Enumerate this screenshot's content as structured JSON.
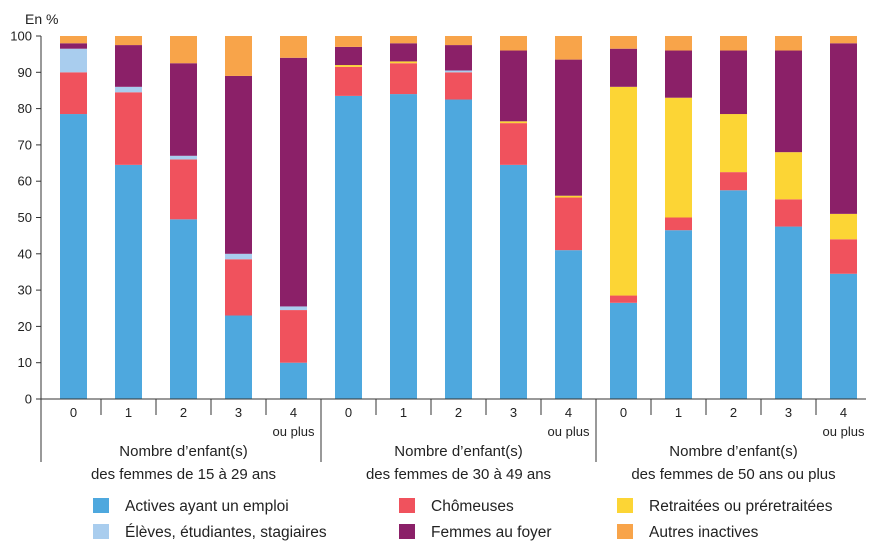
{
  "chart_data": {
    "type": "bar",
    "stacked": true,
    "ylabel": "En %",
    "ylim": [
      0,
      100
    ],
    "yticks": [
      0,
      10,
      20,
      30,
      40,
      50,
      60,
      70,
      80,
      90,
      100
    ],
    "grid": false,
    "legend_position": "bottom",
    "groups": [
      {
        "label_line1": "Nombre d’enfant(s)",
        "label_line2": "des femmes de 15 à 29 ans"
      },
      {
        "label_line1": "Nombre d’enfant(s)",
        "label_line2": "des femmes de 30 à 49 ans"
      },
      {
        "label_line1": "Nombre d’enfant(s)",
        "label_line2": "des femmes de 50 ans ou plus"
      }
    ],
    "categories": [
      {
        "label": "0",
        "sublabel": ""
      },
      {
        "label": "1",
        "sublabel": ""
      },
      {
        "label": "2",
        "sublabel": ""
      },
      {
        "label": "3",
        "sublabel": ""
      },
      {
        "label": "4",
        "sublabel": "ou plus"
      },
      {
        "label": "0",
        "sublabel": ""
      },
      {
        "label": "1",
        "sublabel": ""
      },
      {
        "label": "2",
        "sublabel": ""
      },
      {
        "label": "3",
        "sublabel": ""
      },
      {
        "label": "4",
        "sublabel": "ou plus"
      },
      {
        "label": "0",
        "sublabel": ""
      },
      {
        "label": "1",
        "sublabel": ""
      },
      {
        "label": "2",
        "sublabel": ""
      },
      {
        "label": "3",
        "sublabel": ""
      },
      {
        "label": "4",
        "sublabel": "ou plus"
      }
    ],
    "series": [
      {
        "name": "Actives ayant un emploi",
        "color": "#4ea8de",
        "values": [
          78.5,
          64.5,
          49.5,
          23,
          10,
          83.5,
          84,
          82.5,
          64.5,
          41,
          26.5,
          46.5,
          57.5,
          47.5,
          34.5
        ]
      },
      {
        "name": "Chômeuses",
        "color": "#f0525d",
        "values": [
          11.5,
          20,
          16.5,
          15.5,
          14.5,
          8,
          8.5,
          7.5,
          11.5,
          14.5,
          2,
          3.5,
          5,
          7.5,
          9.5
        ]
      },
      {
        "name": "Retraitées ou préretraitées",
        "color": "#fcd535",
        "values": [
          0,
          0,
          0,
          0,
          0,
          0.5,
          0.5,
          0,
          0.5,
          0.5,
          57.5,
          33,
          16,
          13,
          7
        ]
      },
      {
        "name": "Élèves, étudiantes, stagiaires",
        "color": "#a9cdee",
        "values": [
          6.5,
          1.5,
          1,
          1.5,
          1,
          0,
          0,
          0.5,
          0,
          0,
          0,
          0,
          0,
          0,
          0
        ]
      },
      {
        "name": "Femmes au foyer",
        "color": "#8b2068",
        "values": [
          1.5,
          11.5,
          25.5,
          49,
          68.5,
          5,
          5,
          7,
          19.5,
          37.5,
          10.5,
          13,
          17.5,
          28,
          47
        ]
      },
      {
        "name": "Autres inactives",
        "color": "#f8a44a",
        "values": [
          2,
          2.5,
          7.5,
          11,
          6,
          3,
          2,
          2.5,
          4,
          6.5,
          3.5,
          4,
          4,
          4,
          2
        ]
      }
    ],
    "legend_rows": [
      [
        "Actives ayant un emploi",
        "Chômeuses",
        "Retraitées ou préretraitées"
      ],
      [
        "Élèves, étudiantes, stagiaires",
        "Femmes au foyer",
        "Autres inactives"
      ]
    ]
  }
}
